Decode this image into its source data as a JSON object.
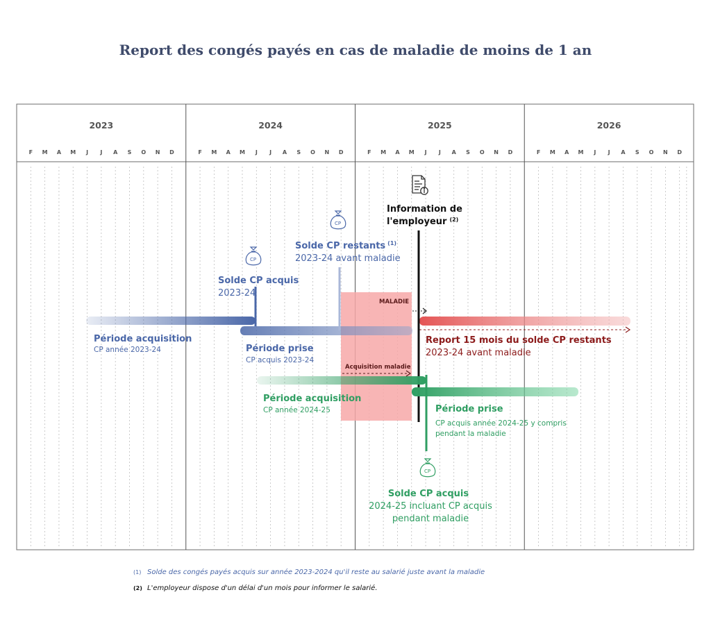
{
  "title": "Report des congés payés en cas de maladie de moins de 1 an",
  "years": [
    "2023",
    "2024",
    "2025",
    "2026"
  ],
  "months": [
    "F",
    "M",
    "A",
    "M",
    "J",
    "J",
    "A",
    "S",
    "O",
    "N",
    "D"
  ],
  "colors": {
    "blue": "#4a67a8",
    "green": "#2f9e62",
    "red": "#e45454",
    "dark_red": "#8c1b1b",
    "maladie_zone": "#f7a8a8",
    "frame": "#6b6b6b",
    "title": "#3f4b6b"
  },
  "icons": {
    "document": "document-info-icon",
    "moneybag": "cp-moneybag-icon"
  },
  "labels": {
    "info_employeur_1": "Information de",
    "info_employeur_2": "l'employeur",
    "info_employeur_sup": "(2)",
    "solde_restants_1": "Solde CP restants",
    "solde_restants_sup": "(1)",
    "solde_restants_2": "2023-24 avant maladie",
    "solde_acquis_1": "Solde CP acquis",
    "solde_acquis_2": "2023-24",
    "maladie": "MALADIE",
    "acq_maladie": "Acquisition maladie",
    "periode_acq_2324_1": "Période acquisition",
    "periode_acq_2324_2": "CP année 2023-24",
    "periode_prise_2324_1": "Période prise",
    "periode_prise_2324_2": "CP acquis 2023-24",
    "report_1": "Report 15 mois du solde CP restants",
    "report_2": "2023-24 avant maladie",
    "periode_acq_2425_1": "Période acquisition",
    "periode_acq_2425_2": "CP année 2024-25",
    "periode_prise_2425_1": "Période prise",
    "periode_prise_2425_2": "CP acquis année 2024-25 y compris",
    "periode_prise_2425_3": "pendant la maladie",
    "solde_2425_1": "Solde CP acquis",
    "solde_2425_2": "2024-25 incluant CP acquis",
    "solde_2425_3": "pendant maladie",
    "cp": "CP"
  },
  "footnotes": [
    {
      "num": "(1)",
      "text": "Solde des congés payés acquis sur année 2023-2024 qu'il reste au salarié juste avant la maladie"
    },
    {
      "num": "(2)",
      "text": "L'employeur dispose d'un délai d'un mois pour informer le salarié."
    }
  ]
}
